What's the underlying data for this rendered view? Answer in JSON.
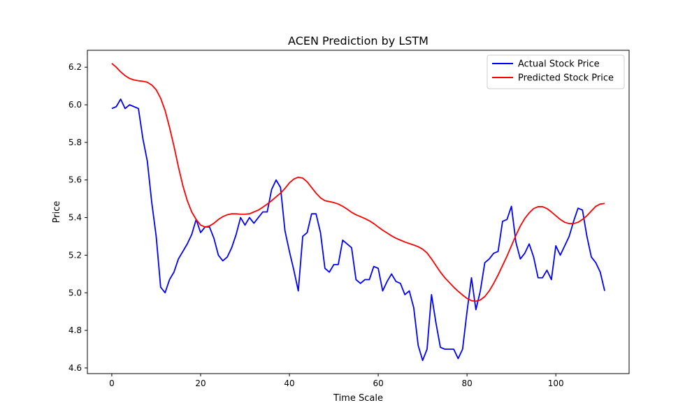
{
  "chart_data": {
    "type": "line",
    "title": "ACEN Prediction by LSTM",
    "xlabel": "Time Scale",
    "ylabel": "Price",
    "xlim": [
      -5.5,
      116.5
    ],
    "ylim": [
      4.57,
      6.29
    ],
    "xticks": [
      0,
      20,
      40,
      60,
      80,
      100
    ],
    "yticks": [
      4.6,
      4.8,
      5.0,
      5.2,
      5.4,
      5.6,
      5.8,
      6.0,
      6.2
    ],
    "xtick_labels": [
      "0",
      "20",
      "40",
      "60",
      "80",
      "100"
    ],
    "ytick_labels": [
      "4.6",
      "4.8",
      "5.0",
      "5.2",
      "5.4",
      "5.6",
      "5.8",
      "6.0",
      "6.2"
    ],
    "grid": false,
    "legend_position": "top-right",
    "series": [
      {
        "name": "Actual Stock Price",
        "color": "#0000ff",
        "values": [
          5.98,
          5.99,
          6.03,
          5.98,
          6.0,
          5.99,
          5.98,
          5.82,
          5.7,
          5.48,
          5.3,
          5.03,
          5.0,
          5.07,
          5.11,
          5.18,
          5.22,
          5.26,
          5.31,
          5.39,
          5.32,
          5.35,
          5.35,
          5.29,
          5.2,
          5.17,
          5.19,
          5.24,
          5.31,
          5.4,
          5.36,
          5.4,
          5.37,
          5.4,
          5.43,
          5.43,
          5.55,
          5.6,
          5.56,
          5.33,
          5.22,
          5.12,
          5.01,
          5.3,
          5.32,
          5.42,
          5.42,
          5.32,
          5.13,
          5.11,
          5.15,
          5.15,
          5.28,
          5.26,
          5.24,
          5.07,
          5.05,
          5.07,
          5.07,
          5.14,
          5.13,
          5.01,
          5.06,
          5.1,
          5.06,
          5.05,
          4.99,
          5.01,
          4.92,
          4.72,
          4.64,
          4.7,
          4.99,
          4.84,
          4.71,
          4.7,
          4.7,
          4.7,
          4.65,
          4.7,
          4.9,
          5.08,
          4.91,
          5.01,
          5.16,
          5.18,
          5.21,
          5.22,
          5.38,
          5.39,
          5.46,
          5.27,
          5.18,
          5.21,
          5.26,
          5.19,
          5.08,
          5.08,
          5.12,
          5.07,
          5.25,
          5.2,
          5.25,
          5.3,
          5.38,
          5.45,
          5.44,
          5.3,
          5.19,
          5.16,
          5.11,
          5.01
        ]
      },
      {
        "name": "Predicted Stock Price",
        "color": "#ff0000",
        "values": [
          6.22,
          6.2,
          6.175,
          6.155,
          6.14,
          6.132,
          6.128,
          6.125,
          6.12,
          6.105,
          6.08,
          6.035,
          5.97,
          5.88,
          5.78,
          5.67,
          5.57,
          5.49,
          5.43,
          5.39,
          5.36,
          5.35,
          5.355,
          5.37,
          5.39,
          5.405,
          5.415,
          5.42,
          5.42,
          5.418,
          5.418,
          5.42,
          5.43,
          5.44,
          5.455,
          5.472,
          5.49,
          5.51,
          5.53,
          5.555,
          5.585,
          5.605,
          5.615,
          5.61,
          5.59,
          5.56,
          5.53,
          5.505,
          5.49,
          5.485,
          5.48,
          5.472,
          5.46,
          5.445,
          5.428,
          5.415,
          5.405,
          5.395,
          5.383,
          5.368,
          5.35,
          5.333,
          5.318,
          5.303,
          5.29,
          5.28,
          5.27,
          5.262,
          5.254,
          5.245,
          5.232,
          5.212,
          5.18,
          5.145,
          5.11,
          5.08,
          5.055,
          5.03,
          5.008,
          4.988,
          4.97,
          4.958,
          4.955,
          4.962,
          4.98,
          5.01,
          5.05,
          5.095,
          5.145,
          5.195,
          5.25,
          5.305,
          5.355,
          5.395,
          5.425,
          5.448,
          5.458,
          5.458,
          5.448,
          5.43,
          5.41,
          5.39,
          5.375,
          5.368,
          5.368,
          5.375,
          5.39,
          5.41,
          5.435,
          5.46,
          5.472,
          5.475
        ]
      }
    ]
  }
}
